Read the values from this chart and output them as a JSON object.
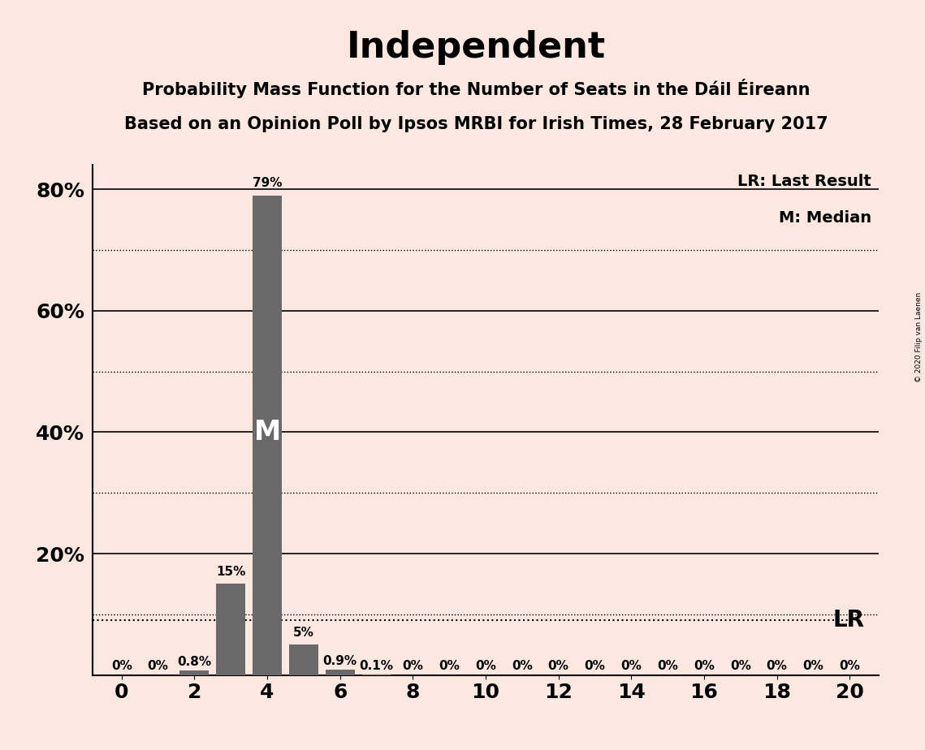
{
  "title": "Independent",
  "subtitle1": "Probability Mass Function for the Number of Seats in the Dáil Éireann",
  "subtitle2": "Based on an Opinion Poll by Ipsos MRBI for Irish Times, 28 February 2017",
  "copyright": "© 2020 Filip van Laenen",
  "background_color": "#fce8e0",
  "bar_color": "#696969",
  "seats": [
    0,
    1,
    2,
    3,
    4,
    5,
    6,
    7,
    8,
    9,
    10,
    11,
    12,
    13,
    14,
    15,
    16,
    17,
    18,
    19,
    20
  ],
  "probabilities": [
    0.0,
    0.0,
    0.8,
    15.0,
    79.0,
    5.0,
    0.9,
    0.1,
    0.0,
    0.0,
    0.0,
    0.0,
    0.0,
    0.0,
    0.0,
    0.0,
    0.0,
    0.0,
    0.0,
    0.0,
    0.0
  ],
  "bar_labels": [
    "0%",
    "0%",
    "0.8%",
    "15%",
    "79%",
    "5%",
    "0.9%",
    "0.1%",
    "0%",
    "0%",
    "0%",
    "0%",
    "0%",
    "0%",
    "0%",
    "0%",
    "0%",
    "0%",
    "0%",
    "0%",
    "0%"
  ],
  "median_seat": 4,
  "last_result_value": 9.0,
  "ylim": [
    0,
    84
  ],
  "major_yticks": [
    20,
    40,
    60,
    80
  ],
  "minor_yticks": [
    10,
    30,
    50,
    70
  ],
  "legend_lr": "LR: Last Result",
  "legend_m": "M: Median",
  "lr_label": "LR",
  "m_label": "M",
  "title_fontsize": 32,
  "subtitle_fontsize": 15,
  "tick_fontsize": 18,
  "bar_label_fontsize": 11
}
